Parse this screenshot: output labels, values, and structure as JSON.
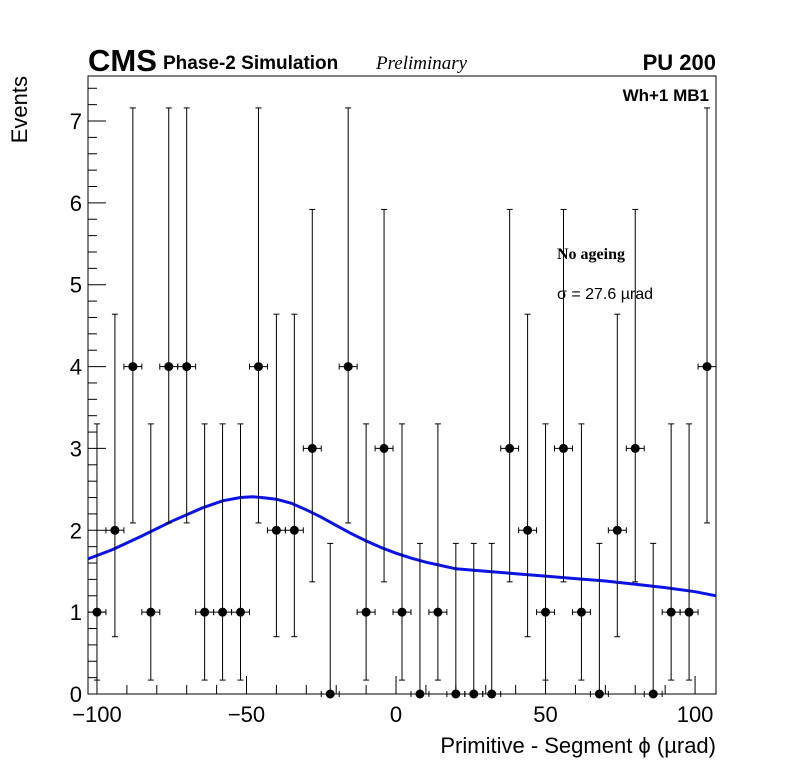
{
  "chart_data": {
    "type": "scatter",
    "experiment": "CMS",
    "subtitle": "Phase-2 Simulation",
    "status": "Preliminary",
    "pileup": "PU 200",
    "station": "Wh+1 MB1",
    "legend_title": "No ageing",
    "fit_label": "σ = 27.6  µrad",
    "xlabel": "Primitive - Segment ϕ (µrad)",
    "ylabel": "Events",
    "xlim": [
      -103,
      107
    ],
    "ylim": [
      0,
      7.55
    ],
    "xticks": [
      -100,
      -50,
      0,
      50,
      100
    ],
    "yticks": [
      0,
      1,
      2,
      3,
      4,
      5,
      6,
      7
    ],
    "bin_width": 6,
    "series": [
      {
        "name": "data",
        "x": [
          -100,
          -94,
          -88,
          -82,
          -76,
          -70,
          -64,
          -58,
          -52,
          -46,
          -40,
          -34,
          -28,
          -22,
          -16,
          -10,
          -4,
          2,
          8,
          14,
          20,
          26,
          32,
          38,
          44,
          50,
          56,
          62,
          68,
          74,
          80,
          86,
          92,
          98,
          104
        ],
        "y": [
          1,
          2,
          4,
          1,
          4,
          4,
          1,
          1,
          1,
          4,
          2,
          2,
          3,
          0,
          4,
          1,
          3,
          1,
          0,
          1,
          0,
          0,
          0,
          3,
          2,
          1,
          3,
          1,
          0,
          2,
          3,
          0,
          1,
          1,
          4
        ]
      },
      {
        "name": "fit",
        "x": [
          -103,
          -95,
          -85,
          -75,
          -65,
          -58,
          -52,
          -48,
          -45,
          -40,
          -35,
          -30,
          -25,
          -20,
          -15,
          -10,
          -5,
          0,
          5,
          10,
          15,
          20,
          30,
          40,
          50,
          60,
          70,
          80,
          90,
          100,
          107
        ],
        "y": [
          1.65,
          1.76,
          1.93,
          2.11,
          2.27,
          2.36,
          2.4,
          2.41,
          2.4,
          2.38,
          2.33,
          2.25,
          2.16,
          2.06,
          1.96,
          1.87,
          1.79,
          1.72,
          1.66,
          1.61,
          1.57,
          1.53,
          1.5,
          1.47,
          1.44,
          1.41,
          1.38,
          1.34,
          1.3,
          1.25,
          1.2
        ]
      }
    ],
    "colors": {
      "data": "#000000",
      "fit": "#0a14e6",
      "axis": "#000000"
    }
  }
}
